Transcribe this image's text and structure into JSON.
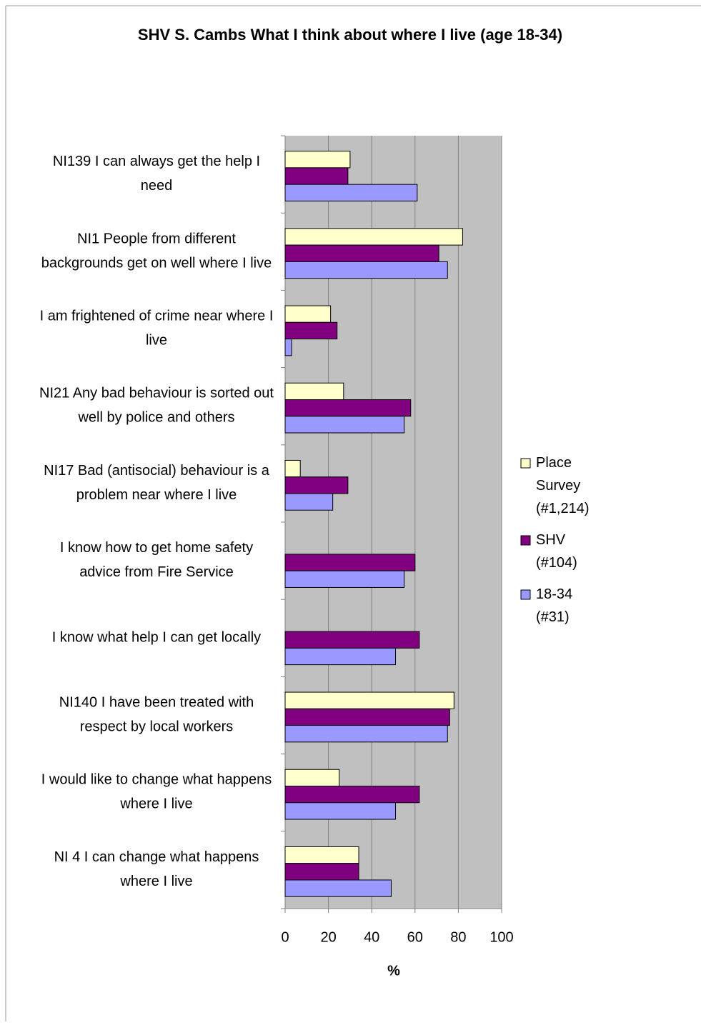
{
  "chart_data": {
    "type": "barh",
    "title": "SHV S. Cambs What I think about where I live (age 18-34)",
    "xlabel": "%",
    "categories": [
      "NI139 I can always get the help I need",
      "NI1 People from different backgrounds get on well where I live",
      "I am frightened of crime near where I live",
      "NI21 Any bad behaviour is sorted out well by police and others",
      "NI17 Bad (antisocial) behaviour is a problem near where I live",
      "I know how to get home safety advice from Fire Service",
      "I know what help I can get locally",
      "NI140 I have been treated with respect by local workers",
      "I would like to change what happens where I live",
      "NI 4 I can change what happens where I live"
    ],
    "series": [
      {
        "name": "Place Survey (#1,214)",
        "color": "#ffffcc",
        "values": [
          30,
          82,
          21,
          27,
          7,
          null,
          null,
          78,
          25,
          34
        ]
      },
      {
        "name": "SHV (#104)",
        "color": "#800080",
        "values": [
          29,
          71,
          24,
          58,
          29,
          60,
          62,
          76,
          62,
          34
        ]
      },
      {
        "name": "18-34 (#31)",
        "color": "#9999ff",
        "values": [
          61,
          75,
          3,
          55,
          22,
          55,
          51,
          75,
          51,
          49
        ]
      }
    ],
    "xlim": [
      0,
      100
    ],
    "xticks": [
      0,
      20,
      40,
      60,
      80,
      100
    ],
    "grid": true,
    "legend": "right"
  }
}
